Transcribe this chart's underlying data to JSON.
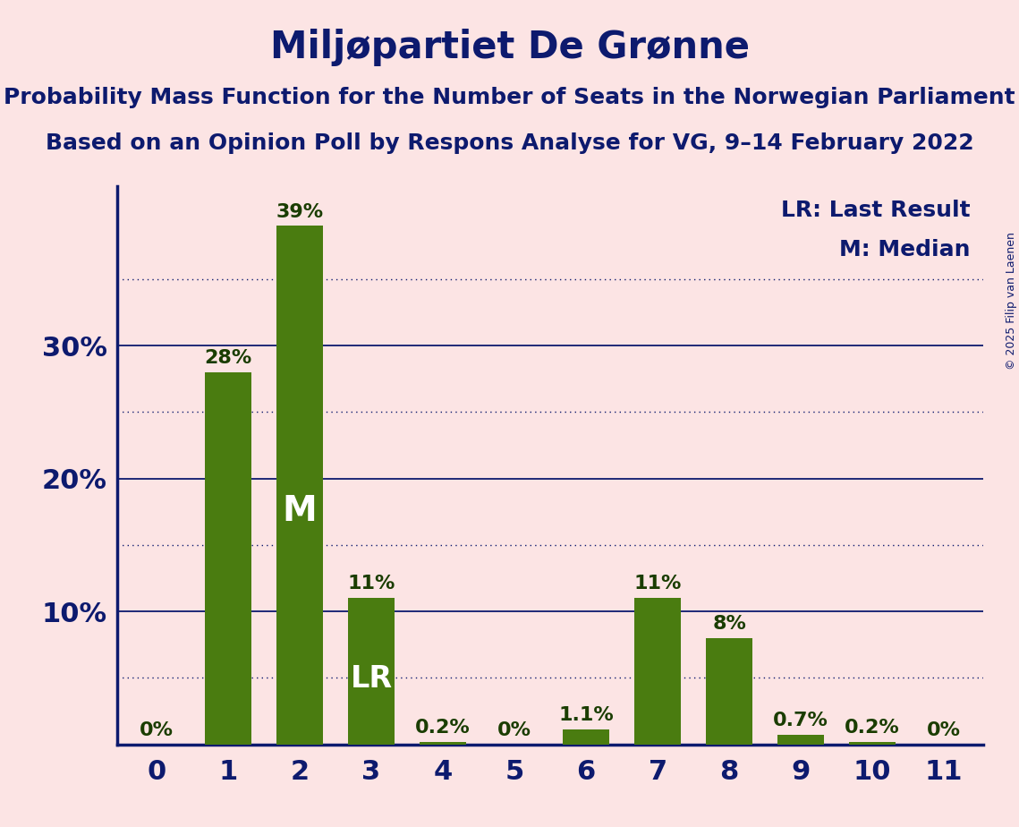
{
  "title": "Miljøpartiet De Grønne",
  "subtitle1": "Probability Mass Function for the Number of Seats in the Norwegian Parliament",
  "subtitle2": "Based on an Opinion Poll by Respons Analyse for VG, 9–14 February 2022",
  "copyright": "© 2025 Filip van Laenen",
  "categories": [
    0,
    1,
    2,
    3,
    4,
    5,
    6,
    7,
    8,
    9,
    10,
    11
  ],
  "values": [
    0.0,
    28.0,
    39.0,
    11.0,
    0.2,
    0.0,
    1.1,
    11.0,
    8.0,
    0.7,
    0.2,
    0.0
  ],
  "bar_color": "#4a7c10",
  "bar_labels": [
    "0%",
    "28%",
    "39%",
    "11%",
    "0.2%",
    "0%",
    "1.1%",
    "11%",
    "8%",
    "0.7%",
    "0.2%",
    "0%"
  ],
  "median_bar": 2,
  "lr_bar": 3,
  "median_label": "M",
  "lr_label": "LR",
  "legend_lr": "LR: Last Result",
  "legend_m": "M: Median",
  "background_color": "#fce4e4",
  "text_color": "#0d1a6e",
  "bar_label_color": "#1a3d00",
  "inner_label_color": "#ffffff",
  "solid_yticks": [
    10,
    20,
    30
  ],
  "dotted_yticks": [
    5,
    15,
    25,
    35
  ],
  "ylim": [
    0,
    42
  ],
  "xlim": [
    -0.55,
    11.55
  ],
  "title_fontsize": 30,
  "subtitle_fontsize": 18,
  "axis_tick_fontsize": 22,
  "bar_label_fontsize": 16,
  "inner_label_fontsize_m": 28,
  "inner_label_fontsize_lr": 24,
  "legend_fontsize": 18,
  "copyright_fontsize": 9,
  "bar_width": 0.65
}
